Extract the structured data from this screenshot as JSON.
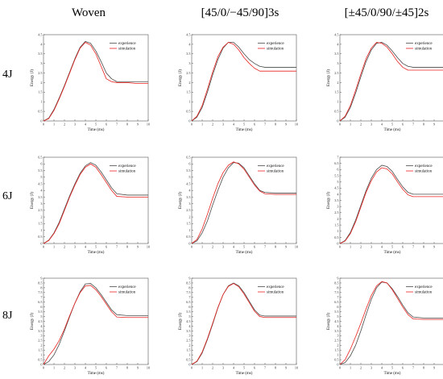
{
  "columns": [
    "Woven",
    "[45/0/−45/90]3s",
    "[±45/0/90/±45]2s"
  ],
  "rows": [
    "4J",
    "6J",
    "8J"
  ],
  "colors": {
    "experience": "#4a4a4a",
    "simulation": "#e8231f"
  },
  "chart_data": [
    {
      "type": "line",
      "row": "4J",
      "column": "Woven",
      "xlabel": "Time (ms)",
      "ylabel": "Energy (J)",
      "xlim": [
        0,
        10
      ],
      "ylim": [
        0,
        4.5
      ],
      "xticks": [
        0,
        1,
        2,
        3,
        4,
        5,
        6,
        7,
        8,
        9,
        10
      ],
      "yticks": [
        0,
        0.5,
        1,
        1.5,
        2,
        2.5,
        3,
        3.5,
        4,
        4.5
      ],
      "series": [
        {
          "name": "experience",
          "x": [
            0,
            0.5,
            1,
            1.5,
            2,
            2.5,
            3,
            3.5,
            4,
            4.5,
            5,
            5.5,
            6,
            6.5,
            7,
            8,
            9,
            10
          ],
          "y": [
            0,
            0.15,
            0.6,
            1.2,
            1.85,
            2.55,
            3.25,
            3.85,
            4.15,
            4.05,
            3.65,
            3.1,
            2.5,
            2.2,
            2.05,
            2.05,
            2.05,
            2.05
          ]
        },
        {
          "name": "simulation",
          "x": [
            0,
            0.5,
            1,
            1.5,
            2,
            2.5,
            3,
            3.5,
            4,
            4.5,
            5,
            5.5,
            6,
            6.5,
            7,
            8,
            9,
            10
          ],
          "y": [
            0,
            0.12,
            0.55,
            1.15,
            1.8,
            2.5,
            3.2,
            3.8,
            4.1,
            3.95,
            3.5,
            2.85,
            2.2,
            2.05,
            2.0,
            2.0,
            1.95,
            1.95
          ]
        }
      ]
    },
    {
      "type": "line",
      "row": "4J",
      "column": "[45/0/−45/90]3s",
      "xlabel": "Time (ms)",
      "ylabel": "Energy (J)",
      "xlim": [
        0,
        10
      ],
      "ylim": [
        0,
        4.5
      ],
      "xticks": [
        0,
        1,
        2,
        3,
        4,
        5,
        6,
        7,
        8,
        9,
        10
      ],
      "yticks": [
        0,
        0.5,
        1,
        1.5,
        2,
        2.5,
        3,
        3.5,
        4,
        4.5
      ],
      "series": [
        {
          "name": "experience",
          "x": [
            0,
            0.5,
            1,
            1.5,
            2,
            2.5,
            3,
            3.5,
            4,
            4.5,
            5,
            5.5,
            6,
            6.5,
            7,
            8,
            9,
            10
          ],
          "y": [
            0,
            0.2,
            0.7,
            1.5,
            2.4,
            3.2,
            3.8,
            4.1,
            4.1,
            3.85,
            3.5,
            3.2,
            3.0,
            2.85,
            2.8,
            2.8,
            2.8,
            2.8
          ]
        },
        {
          "name": "simulation",
          "x": [
            0,
            0.5,
            1,
            1.5,
            2,
            2.5,
            3,
            3.5,
            4,
            4.5,
            5,
            5.5,
            6,
            6.5,
            7,
            8,
            9,
            10
          ],
          "y": [
            0,
            0.25,
            0.8,
            1.65,
            2.55,
            3.35,
            3.85,
            4.1,
            4.0,
            3.7,
            3.3,
            3.0,
            2.75,
            2.6,
            2.6,
            2.6,
            2.6,
            2.6
          ]
        }
      ]
    },
    {
      "type": "line",
      "row": "4J",
      "column": "[±45/0/90/±45]2s",
      "xlabel": "Time (ms)",
      "ylabel": "Energy (J)",
      "xlim": [
        0,
        10
      ],
      "ylim": [
        0,
        4.5
      ],
      "xticks": [
        0,
        1,
        2,
        3,
        4,
        5,
        6,
        7,
        8,
        9,
        10
      ],
      "yticks": [
        0,
        0.5,
        1,
        1.5,
        2,
        2.5,
        3,
        3.5,
        4,
        4.5
      ],
      "series": [
        {
          "name": "experience",
          "x": [
            0,
            0.5,
            1,
            1.5,
            2,
            2.5,
            3,
            3.5,
            4,
            4.5,
            5,
            5.5,
            6,
            6.5,
            7,
            8,
            9,
            10
          ],
          "y": [
            0,
            0.2,
            0.7,
            1.45,
            2.3,
            3.1,
            3.7,
            4.05,
            4.1,
            3.95,
            3.65,
            3.3,
            3.0,
            2.85,
            2.8,
            2.8,
            2.8,
            2.8
          ]
        },
        {
          "name": "simulation",
          "x": [
            0,
            0.5,
            1,
            1.5,
            2,
            2.5,
            3,
            3.5,
            4,
            4.5,
            5,
            5.5,
            6,
            6.5,
            7,
            8,
            9,
            10
          ],
          "y": [
            0,
            0.25,
            0.8,
            1.6,
            2.45,
            3.25,
            3.8,
            4.1,
            4.05,
            3.85,
            3.5,
            3.1,
            2.8,
            2.65,
            2.65,
            2.65,
            2.65,
            2.65
          ]
        }
      ]
    },
    {
      "type": "line",
      "row": "6J",
      "column": "Woven",
      "xlabel": "Time (ms)",
      "ylabel": "Energy (J)",
      "xlim": [
        0,
        10
      ],
      "ylim": [
        0,
        6.5
      ],
      "xticks": [
        0,
        1,
        2,
        3,
        4,
        5,
        6,
        7,
        8,
        9,
        10
      ],
      "yticks": [
        0,
        0.5,
        1,
        1.5,
        2,
        2.5,
        3,
        3.5,
        4,
        4.5,
        5,
        5.5,
        6,
        6.5
      ],
      "series": [
        {
          "name": "experience",
          "x": [
            0,
            0.5,
            1,
            1.5,
            2,
            2.5,
            3,
            3.5,
            4,
            4.5,
            5,
            5.5,
            6,
            6.5,
            7,
            8,
            9,
            10
          ],
          "y": [
            0,
            0.25,
            0.8,
            1.6,
            2.6,
            3.6,
            4.5,
            5.3,
            5.85,
            6.1,
            5.9,
            5.4,
            4.8,
            4.2,
            3.75,
            3.65,
            3.65,
            3.65
          ]
        },
        {
          "name": "simulation",
          "x": [
            0,
            0.5,
            1,
            1.5,
            2,
            2.5,
            3,
            3.5,
            4,
            4.5,
            5,
            5.5,
            6,
            6.5,
            7,
            8,
            9,
            10
          ],
          "y": [
            0,
            0.22,
            0.75,
            1.5,
            2.5,
            3.5,
            4.4,
            5.2,
            5.75,
            6.0,
            5.75,
            5.2,
            4.6,
            4.0,
            3.55,
            3.5,
            3.5,
            3.5
          ]
        }
      ]
    },
    {
      "type": "line",
      "row": "6J",
      "column": "[45/0/−45/90]3s",
      "xlabel": "Time (ms)",
      "ylabel": "Energy (J)",
      "xlim": [
        0,
        10
      ],
      "ylim": [
        0,
        6.5
      ],
      "xticks": [
        0,
        1,
        2,
        3,
        4,
        5,
        6,
        7,
        8,
        9,
        10
      ],
      "yticks": [
        0,
        0.5,
        1,
        1.5,
        2,
        2.5,
        3,
        3.5,
        4,
        4.5,
        5,
        5.5,
        6,
        6.5
      ],
      "series": [
        {
          "name": "experience",
          "x": [
            0,
            0.5,
            1,
            1.5,
            2,
            2.5,
            3,
            3.5,
            4,
            4.5,
            5,
            5.5,
            6,
            6.5,
            7,
            8,
            9,
            10
          ],
          "y": [
            0,
            0.2,
            0.8,
            1.7,
            2.9,
            4.0,
            5.0,
            5.7,
            6.1,
            6.05,
            5.7,
            5.1,
            4.5,
            4.0,
            3.85,
            3.8,
            3.8,
            3.8
          ]
        },
        {
          "name": "simulation",
          "x": [
            0,
            0.5,
            1,
            1.5,
            2,
            2.5,
            3,
            3.5,
            4,
            4.5,
            5,
            5.5,
            6,
            6.5,
            7,
            8,
            9,
            10
          ],
          "y": [
            0,
            0.3,
            1.1,
            2.2,
            3.4,
            4.5,
            5.35,
            5.9,
            6.15,
            6.0,
            5.6,
            5.0,
            4.4,
            3.95,
            3.75,
            3.7,
            3.7,
            3.7
          ]
        }
      ]
    },
    {
      "type": "line",
      "row": "6J",
      "column": "[±45/0/90/±45]2s",
      "xlabel": "Time (ms)",
      "ylabel": "Energy (J)",
      "xlim": [
        0,
        10
      ],
      "ylim": [
        0,
        7.0
      ],
      "xticks": [
        0,
        1,
        2,
        3,
        4,
        5,
        6,
        7,
        8,
        9,
        10
      ],
      "yticks": [
        0,
        0.5,
        1,
        1.5,
        2,
        2.5,
        3,
        3.5,
        4,
        4.5,
        5,
        5.5,
        6,
        6.5,
        7
      ],
      "series": [
        {
          "name": "experience",
          "x": [
            0,
            0.5,
            1,
            1.5,
            2,
            2.5,
            3,
            3.5,
            4,
            4.5,
            5,
            5.5,
            6,
            6.5,
            7,
            8,
            9,
            10
          ],
          "y": [
            0,
            0.25,
            0.9,
            1.9,
            3.1,
            4.3,
            5.3,
            6.0,
            6.35,
            6.25,
            5.85,
            5.2,
            4.6,
            4.15,
            4.0,
            4.0,
            4.0,
            4.0
          ]
        },
        {
          "name": "simulation",
          "x": [
            0,
            0.5,
            1,
            1.5,
            2,
            2.5,
            3,
            3.5,
            4,
            4.5,
            5,
            5.5,
            6,
            6.5,
            7,
            8,
            9,
            10
          ],
          "y": [
            0,
            0.2,
            0.8,
            1.75,
            2.95,
            4.15,
            5.1,
            5.8,
            6.15,
            6.05,
            5.65,
            5.0,
            4.4,
            3.95,
            3.8,
            3.8,
            3.8,
            3.8
          ]
        }
      ]
    },
    {
      "type": "line",
      "row": "8J",
      "column": "Woven",
      "xlabel": "Time (ms)",
      "ylabel": "Energy (J)",
      "xlim": [
        0,
        10
      ],
      "ylim": [
        0,
        9.0
      ],
      "xticks": [
        0,
        1,
        2,
        3,
        4,
        5,
        6,
        7,
        8,
        9,
        10
      ],
      "yticks": [
        0,
        0.5,
        1,
        1.5,
        2,
        2.5,
        3,
        3.5,
        4,
        4.5,
        5,
        5.5,
        6,
        6.5,
        7,
        7.5,
        8,
        8.5,
        9
      ],
      "series": [
        {
          "name": "experience",
          "x": [
            0,
            0.5,
            1,
            1.5,
            2,
            2.5,
            3,
            3.5,
            4,
            4.5,
            5,
            5.5,
            6,
            6.5,
            7,
            8,
            9,
            10
          ],
          "y": [
            0,
            0.3,
            1.0,
            2.1,
            3.5,
            5.0,
            6.4,
            7.6,
            8.4,
            8.45,
            8.0,
            7.3,
            6.5,
            5.7,
            5.2,
            5.1,
            5.1,
            5.1
          ]
        },
        {
          "name": "simulation",
          "x": [
            0,
            0.5,
            1,
            1.5,
            2,
            2.5,
            3,
            3.5,
            4,
            4.5,
            5,
            5.5,
            6,
            6.5,
            7,
            8,
            9,
            10
          ],
          "y": [
            0,
            0.9,
            1.6,
            2.5,
            3.7,
            5.1,
            6.4,
            7.5,
            8.2,
            8.25,
            7.8,
            7.1,
            6.3,
            5.5,
            4.95,
            4.9,
            4.9,
            4.9
          ]
        }
      ]
    },
    {
      "type": "line",
      "row": "8J",
      "column": "[45/0/−45/90]3s",
      "xlabel": "Time (ms)",
      "ylabel": "Energy (J)",
      "xlim": [
        0,
        10
      ],
      "ylim": [
        0,
        9.0
      ],
      "xticks": [
        0,
        1,
        2,
        3,
        4,
        5,
        6,
        7,
        8,
        9,
        10
      ],
      "yticks": [
        0,
        0.5,
        1,
        1.5,
        2,
        2.5,
        3,
        3.5,
        4,
        4.5,
        5,
        5.5,
        6,
        6.5,
        7,
        7.5,
        8,
        8.5,
        9
      ],
      "series": [
        {
          "name": "experience",
          "x": [
            0,
            0.5,
            1,
            1.5,
            2,
            2.5,
            3,
            3.5,
            4,
            4.5,
            5,
            5.5,
            6,
            6.5,
            7,
            8,
            9,
            10
          ],
          "y": [
            0,
            0.3,
            1.2,
            2.6,
            4.2,
            5.9,
            7.3,
            8.2,
            8.5,
            8.2,
            7.5,
            6.6,
            5.7,
            5.15,
            5.05,
            5.05,
            5.05,
            5.05
          ]
        },
        {
          "name": "simulation",
          "x": [
            0,
            0.5,
            1,
            1.5,
            2,
            2.5,
            3,
            3.5,
            4,
            4.5,
            5,
            5.5,
            6,
            6.5,
            7,
            8,
            9,
            10
          ],
          "y": [
            0,
            0.35,
            1.3,
            2.7,
            4.3,
            5.95,
            7.3,
            8.15,
            8.45,
            8.1,
            7.35,
            6.45,
            5.55,
            5.0,
            4.9,
            4.9,
            4.9,
            4.9
          ]
        }
      ]
    },
    {
      "type": "line",
      "row": "8J",
      "column": "[±45/0/90/±45]2s",
      "xlabel": "Time (ms)",
      "ylabel": "Energy (J)",
      "xlim": [
        0,
        10
      ],
      "ylim": [
        0,
        9.0
      ],
      "xticks": [
        0,
        1,
        2,
        3,
        4,
        5,
        6,
        7,
        8,
        9,
        10
      ],
      "yticks": [
        0,
        0.5,
        1,
        1.5,
        2,
        2.5,
        3,
        3.5,
        4,
        4.5,
        5,
        5.5,
        6,
        6.5,
        7,
        7.5,
        8,
        8.5,
        9
      ],
      "series": [
        {
          "name": "experience",
          "x": [
            0,
            0.5,
            1,
            1.5,
            2,
            2.5,
            3,
            3.5,
            4,
            4.5,
            5,
            5.5,
            6,
            6.5,
            7,
            8,
            9,
            10
          ],
          "y": [
            0,
            0.2,
            0.9,
            2.0,
            3.5,
            5.2,
            6.8,
            8.0,
            8.6,
            8.5,
            7.9,
            7.1,
            6.2,
            5.4,
            4.95,
            4.85,
            4.85,
            4.85
          ]
        },
        {
          "name": "simulation",
          "x": [
            0,
            0.5,
            1,
            1.5,
            2,
            2.5,
            3,
            3.5,
            4,
            4.5,
            5,
            5.5,
            6,
            6.5,
            7,
            8,
            9,
            10
          ],
          "y": [
            0,
            0.5,
            1.6,
            2.9,
            4.3,
            5.8,
            7.2,
            8.2,
            8.65,
            8.5,
            7.8,
            6.9,
            6.0,
            5.2,
            4.75,
            4.7,
            4.7,
            4.7
          ]
        }
      ]
    }
  ]
}
